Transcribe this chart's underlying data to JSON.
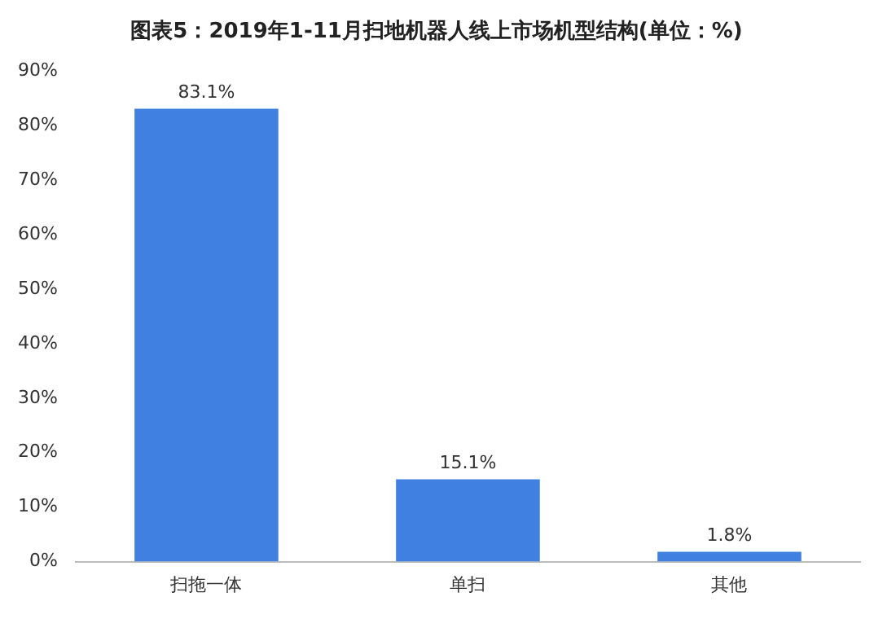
{
  "chart_data": {
    "type": "bar",
    "title": "图表5：2019年1-11月扫地机器人线上市场机型结构(单位：%)",
    "categories": [
      "扫拖一体",
      "单扫",
      "其他"
    ],
    "values": [
      83.1,
      15.1,
      1.8
    ],
    "value_labels": [
      "83.1%",
      "15.1%",
      "1.8%"
    ],
    "color": "#3f80e0",
    "ylim": [
      0,
      90
    ],
    "yticks": [
      {
        "value": 0,
        "label": "0%"
      },
      {
        "value": 10,
        "label": "10%"
      },
      {
        "value": 20,
        "label": "20%"
      },
      {
        "value": 30,
        "label": "30%"
      },
      {
        "value": 40,
        "label": "40%"
      },
      {
        "value": 50,
        "label": "50%"
      },
      {
        "value": 60,
        "label": "60%"
      },
      {
        "value": 70,
        "label": "70%"
      },
      {
        "value": 80,
        "label": "80%"
      },
      {
        "value": 90,
        "label": "90%"
      }
    ],
    "grid": false,
    "legend": false
  }
}
